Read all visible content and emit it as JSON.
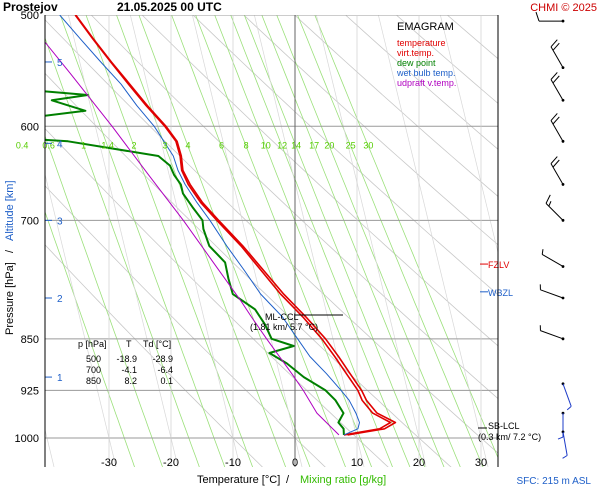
{
  "header": {
    "station": "Prostejov",
    "datetime": "21.05.2025 00 UTC",
    "credit": "CHMI © 2025"
  },
  "chart_data": {
    "type": "line",
    "title": "EMAGRAM",
    "xlabel_temperature": "Temperature [°C]",
    "xlabel_separator": "/",
    "xlabel_mixing": "Mixing ratio [g/kg]",
    "ylabel_pressure": "Pressure [hPa]",
    "ylabel_separator": "/",
    "ylabel_altitude": "Altitude [km]",
    "surface_label": "SFC: 215 m ASL",
    "xlim": [
      -40,
      33
    ],
    "x_ticks": [
      "-30",
      "-20",
      "-10",
      "0",
      "10",
      "20",
      "30"
    ],
    "x_tick_values": [
      -30,
      -20,
      -10,
      0,
      10,
      20,
      30
    ],
    "pressure_ticks": [
      500,
      600,
      700,
      850,
      925,
      1000
    ],
    "pressure_tick_labels": [
      "500",
      "600",
      "700",
      "850",
      "925",
      "1000"
    ],
    "altitude_ticks": [
      {
        "label": "1",
        "p": 905
      },
      {
        "label": "2",
        "p": 795
      },
      {
        "label": "3",
        "p": 700
      },
      {
        "label": "4",
        "p": 617
      },
      {
        "label": "5",
        "p": 540
      }
    ],
    "mixing_ratio_lines": [
      0.4,
      0.6,
      1,
      1.4,
      2,
      3,
      4,
      6,
      8,
      10,
      12,
      14,
      17,
      20,
      25,
      30
    ],
    "mixing_ratio_labels": [
      "0.4",
      "0.6",
      "1",
      "1.4",
      "2",
      "3",
      "4",
      "6",
      "8",
      "10",
      "12",
      "14",
      "17",
      "20",
      "25",
      "30"
    ],
    "mixing_label_pressure": 620,
    "skew_T_per_log10p": 55,
    "legend": [
      "temperature",
      "virt.temp.",
      "dew point",
      "wet bulb temp.",
      "udpraft v.temp."
    ],
    "series": [
      {
        "name": "temperature",
        "color": "#e00000",
        "points": [
          [
            995,
            8
          ],
          [
            985,
            14
          ],
          [
            975,
            16
          ],
          [
            960,
            13.5
          ],
          [
            940,
            12.3
          ],
          [
            925,
            12
          ],
          [
            900,
            10.8
          ],
          [
            875,
            9.6
          ],
          [
            850,
            8.2
          ],
          [
            820,
            6
          ],
          [
            790,
            3.3
          ],
          [
            760,
            1.1
          ],
          [
            730,
            -1.2
          ],
          [
            700,
            -4.1
          ],
          [
            680,
            -6
          ],
          [
            660,
            -7.3
          ],
          [
            645,
            -7.8
          ],
          [
            630,
            -7.5
          ],
          [
            615,
            -7.6
          ],
          [
            600,
            -8.8
          ],
          [
            580,
            -11
          ],
          [
            560,
            -13
          ],
          [
            540,
            -15
          ],
          [
            520,
            -17
          ],
          [
            500,
            -18.9
          ]
        ]
      },
      {
        "name": "virt.temp.",
        "color": "#e00000",
        "points": [
          [
            995,
            8.6
          ],
          [
            985,
            14.8
          ],
          [
            975,
            16.8
          ],
          [
            960,
            14.2
          ],
          [
            940,
            13
          ],
          [
            925,
            12.6
          ],
          [
            900,
            11.4
          ],
          [
            875,
            10.2
          ],
          [
            850,
            8.8
          ],
          [
            820,
            6.5
          ],
          [
            790,
            3.8
          ],
          [
            760,
            1.5
          ],
          [
            730,
            -0.9
          ],
          [
            700,
            -3.8
          ],
          [
            680,
            -5.7
          ],
          [
            660,
            -7
          ],
          [
            645,
            -7.6
          ],
          [
            630,
            -7.3
          ],
          [
            615,
            -7.4
          ],
          [
            600,
            -8.6
          ],
          [
            580,
            -10.8
          ],
          [
            560,
            -12.8
          ],
          [
            540,
            -14.9
          ],
          [
            520,
            -16.9
          ],
          [
            500,
            -18.8
          ]
        ]
      },
      {
        "name": "dew point",
        "color": "#008000",
        "points": [
          [
            995,
            8
          ],
          [
            985,
            8.2
          ],
          [
            975,
            7.6
          ],
          [
            960,
            8.8
          ],
          [
            940,
            8
          ],
          [
            925,
            6.8
          ],
          [
            905,
            3.8
          ],
          [
            885,
            1.6
          ],
          [
            870,
            -0.8
          ],
          [
            860,
            3.4
          ],
          [
            850,
            0.1
          ],
          [
            830,
            -0.4
          ],
          [
            810,
            -1.4
          ],
          [
            790,
            -4.4
          ],
          [
            770,
            -4.5
          ],
          [
            750,
            -4.4
          ],
          [
            730,
            -6.3
          ],
          [
            710,
            -6.6
          ],
          [
            700,
            -6.4
          ],
          [
            685,
            -7.5
          ],
          [
            670,
            -8.5
          ],
          [
            660,
            -8.5
          ],
          [
            650,
            -9.2
          ],
          [
            640,
            -9.5
          ],
          [
            630,
            -11
          ],
          [
            615,
            -25
          ],
          [
            610,
            -38
          ],
          [
            605,
            -39
          ],
          [
            598,
            -39.5
          ],
          [
            590,
            -28
          ],
          [
            585,
            -21
          ],
          [
            575,
            -26
          ],
          [
            570,
            -20
          ],
          [
            565,
            -30
          ],
          [
            560,
            -31
          ],
          [
            555,
            -27
          ],
          [
            548,
            -28
          ],
          [
            545,
            -37
          ],
          [
            538,
            -34
          ],
          [
            530,
            -27
          ],
          [
            520,
            -25
          ],
          [
            510,
            -27
          ],
          [
            500,
            -28.9
          ]
        ]
      },
      {
        "name": "wet bulb temp.",
        "color": "#1e5fc8",
        "points": [
          [
            995,
            8
          ],
          [
            985,
            10.5
          ],
          [
            975,
            11
          ],
          [
            960,
            10.8
          ],
          [
            940,
            10.2
          ],
          [
            925,
            9.3
          ],
          [
            900,
            7.6
          ],
          [
            875,
            5.6
          ],
          [
            850,
            4.3
          ],
          [
            820,
            2.7
          ],
          [
            790,
            0.1
          ],
          [
            760,
            -1.6
          ],
          [
            730,
            -3.5
          ],
          [
            700,
            -5.2
          ],
          [
            680,
            -6.6
          ],
          [
            660,
            -7.8
          ],
          [
            645,
            -8.4
          ],
          [
            630,
            -8.6
          ],
          [
            600,
            -10.5
          ],
          [
            580,
            -12.5
          ],
          [
            560,
            -14.2
          ],
          [
            540,
            -16.6
          ],
          [
            520,
            -19
          ],
          [
            500,
            -21.4
          ]
        ]
      },
      {
        "name": "udpraft v.temp.",
        "color": "#b000c0",
        "points": [
          [
            995,
            7.2
          ],
          [
            960,
            4.5
          ],
          [
            925,
            3.2
          ],
          [
            900,
            2
          ],
          [
            850,
            -0.7
          ],
          [
            820,
            -2.3
          ],
          [
            800,
            -3.3
          ],
          [
            750,
            -6.3
          ],
          [
            700,
            -9.5
          ],
          [
            650,
            -13.3
          ],
          [
            600,
            -17.3
          ],
          [
            550,
            -22
          ],
          [
            500,
            -27.3
          ]
        ]
      }
    ],
    "dry_adiabat_thetas": [
      -10,
      0,
      10,
      20,
      30,
      40,
      50,
      60,
      70,
      80,
      90,
      100,
      110,
      120,
      130
    ],
    "levels": [
      {
        "name": "FZLV",
        "p": 752,
        "color": "#e00000"
      },
      {
        "name": "WBZL",
        "p": 787,
        "color": "#1e5fc8"
      }
    ],
    "annotations": {
      "ml_ccl_label": "ML-CCL",
      "ml_ccl_value": "(1.81 km/ 5.7 °C)",
      "ml_ccl_p": 815,
      "sb_lcl_label": "SB-LCL",
      "sb_lcl_value": "(0.3 km/ 7.2 °C)",
      "sb_lcl_p": 972
    },
    "table": {
      "headers": [
        "p [hPa]",
        "T",
        "Td [°C]"
      ],
      "rows": [
        [
          "500",
          "-18.9",
          "-28.9"
        ],
        [
          "700",
          "-4.1",
          "-6.4"
        ],
        [
          "850",
          "8.2",
          "0.1"
        ]
      ]
    },
    "wind_barbs": [
      {
        "p": 505,
        "direction": 270,
        "speed_kt": 10
      },
      {
        "p": 545,
        "direction": 330,
        "speed_kt": 20
      },
      {
        "p": 575,
        "direction": 330,
        "speed_kt": 20
      },
      {
        "p": 615,
        "direction": 330,
        "speed_kt": 20
      },
      {
        "p": 660,
        "direction": 330,
        "speed_kt": 20
      },
      {
        "p": 700,
        "direction": 315,
        "speed_kt": 15
      },
      {
        "p": 755,
        "direction": 300,
        "speed_kt": 5
      },
      {
        "p": 795,
        "direction": 290,
        "speed_kt": 5
      },
      {
        "p": 850,
        "direction": 290,
        "speed_kt": 5
      },
      {
        "p": 915,
        "direction": 160,
        "speed_kt": 5
      },
      {
        "p": 960,
        "direction": 180,
        "speed_kt": 5
      },
      {
        "p": 990,
        "direction": 170,
        "speed_kt": 5
      }
    ]
  }
}
